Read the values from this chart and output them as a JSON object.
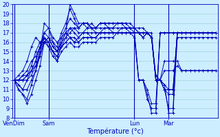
{
  "xlabel": "Température (°c)",
  "background_color": "#cceeff",
  "grid_color": "#99cccc",
  "line_color": "#0000bb",
  "ylim": [
    8,
    20
  ],
  "yticks": [
    8,
    9,
    10,
    11,
    12,
    13,
    14,
    15,
    16,
    17,
    18,
    19,
    20
  ],
  "xtick_labels": [
    "VenDim",
    "Sam",
    "Lun",
    "Mar"
  ],
  "xtick_positions": [
    0,
    8,
    28,
    36
  ],
  "total_points": 48,
  "series": [
    [
      12,
      11.5,
      11,
      12,
      13,
      14,
      15.5,
      16.5,
      16,
      15,
      15,
      16,
      16.5,
      17,
      17.5,
      17,
      17,
      17.5,
      17.5,
      17,
      17,
      17.5,
      17.5,
      17,
      17,
      17.5,
      17.5,
      17.5,
      17.5,
      17.5,
      17.5,
      17,
      16.5,
      12,
      12,
      11.5,
      11,
      11,
      17,
      17,
      17,
      17,
      17,
      17,
      17,
      17,
      17,
      17
    ],
    [
      12,
      12,
      12.5,
      13,
      14,
      14.5,
      15.5,
      16,
      16,
      15,
      14.5,
      15.5,
      16,
      16.5,
      16.5,
      16,
      16.5,
      16.5,
      16.5,
      16.5,
      17,
      17,
      17,
      17,
      17,
      17,
      17,
      17,
      17,
      17,
      17,
      17,
      16.5,
      12.5,
      12,
      14,
      14,
      14,
      14,
      13,
      13,
      13,
      13,
      13,
      13,
      13,
      13,
      13
    ],
    [
      12,
      12.5,
      13,
      14,
      15.5,
      16.5,
      16,
      16,
      16.5,
      16,
      15,
      16,
      17,
      16.5,
      16,
      16.5,
      17,
      17,
      17,
      17,
      17,
      17,
      17,
      17,
      17,
      17,
      17,
      17,
      17,
      17,
      17,
      17,
      17,
      12,
      12,
      11.5,
      8.5,
      8.5,
      16.5,
      16.5,
      16.5,
      16.5,
      16.5,
      16.5,
      16.5,
      16.5,
      16.5,
      16.5
    ],
    [
      12,
      12,
      12,
      12.5,
      13,
      14,
      15.5,
      17,
      17.5,
      16.5,
      16,
      16.5,
      17,
      17.5,
      17.5,
      17.5,
      18,
      18,
      17.5,
      17.5,
      18,
      18,
      18,
      18,
      18,
      18,
      18,
      18,
      17.5,
      17,
      16.5,
      17,
      16.5,
      12,
      12,
      11,
      9,
      9,
      17,
      17,
      17,
      17,
      17,
      17,
      17,
      17,
      17,
      17
    ],
    [
      12,
      11.5,
      11,
      11,
      12,
      13,
      14.5,
      16.5,
      16,
      15,
      14.5,
      15.5,
      16.5,
      17.5,
      17,
      16.5,
      17,
      17,
      16.5,
      16.5,
      17,
      17,
      17,
      17,
      17,
      17,
      17,
      17,
      17,
      17,
      17,
      17,
      16.5,
      12,
      12,
      11,
      11,
      11,
      17,
      17,
      17,
      17,
      17,
      17,
      17,
      17,
      17,
      17
    ],
    [
      12,
      12,
      12,
      12,
      12.5,
      13.5,
      15,
      17,
      16.5,
      15.5,
      15,
      16.5,
      17.5,
      18.5,
      18,
      17.5,
      18,
      18,
      17.5,
      17.5,
      18,
      18,
      17.5,
      17.5,
      18,
      18,
      17.5,
      17.5,
      17.5,
      17,
      16.5,
      17,
      16.5,
      12,
      12,
      11,
      10.5,
      10.5,
      17,
      17,
      17,
      17,
      17,
      17,
      17,
      17,
      17,
      17
    ],
    [
      12,
      11,
      10.5,
      10,
      11.5,
      13,
      15,
      18,
      17.5,
      16,
      15.5,
      17,
      18,
      19.5,
      18.5,
      17.5,
      18,
      18,
      17.5,
      17.5,
      18,
      18,
      18,
      18,
      18,
      18,
      18,
      17.5,
      17,
      12,
      12,
      10.5,
      8.5,
      8.5,
      17,
      17,
      17,
      17,
      17,
      17,
      17,
      17,
      17,
      17,
      17,
      17,
      17,
      17
    ],
    [
      12,
      12,
      12.5,
      12.5,
      13,
      13.5,
      14.5,
      16,
      15.5,
      14.5,
      14,
      15,
      15.5,
      16,
      15.5,
      15.5,
      16,
      16,
      16,
      16,
      16.5,
      16.5,
      16.5,
      16.5,
      17,
      17,
      17,
      17,
      17,
      17,
      16.5,
      17,
      16.5,
      12,
      12,
      13,
      13,
      13,
      13.5,
      13,
      13,
      13,
      13,
      13,
      13,
      13,
      13,
      13
    ],
    [
      12,
      11,
      10.5,
      9.5,
      10.5,
      12,
      13.5,
      16,
      16.5,
      15.5,
      15,
      15.5,
      16,
      16.5,
      16,
      16,
      16.5,
      16.5,
      16.5,
      16.5,
      17,
      17,
      17,
      17,
      17,
      17,
      17,
      17,
      17,
      12,
      12,
      10,
      9,
      9,
      17,
      17,
      17,
      17,
      17,
      17,
      17,
      17,
      17,
      17,
      17,
      17,
      17,
      17
    ],
    [
      12,
      12,
      12,
      12.5,
      13.5,
      15,
      16,
      16.5,
      15.5,
      15,
      14,
      16,
      17,
      20,
      19,
      18,
      18,
      17.5,
      18,
      17.5,
      17.5,
      17.5,
      17.5,
      17.5,
      17.5,
      17.5,
      17.5,
      17,
      16.5,
      12,
      12,
      11,
      9.5,
      9.5,
      17,
      17,
      17,
      17,
      17,
      17,
      17,
      17,
      17,
      17,
      17,
      17,
      17,
      17
    ]
  ]
}
